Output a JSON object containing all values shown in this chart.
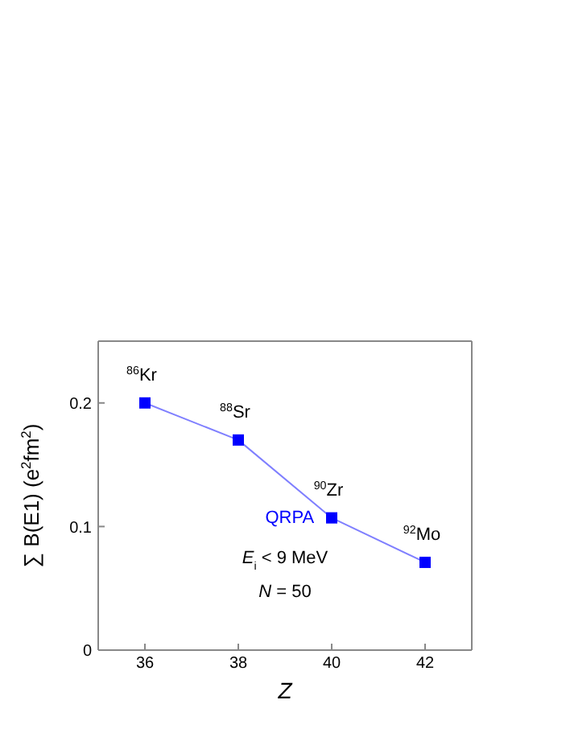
{
  "chart_data": {
    "type": "line",
    "xlabel": "Z",
    "ylabel": "∑ B(E1) (e$^{2}$fm$^{2}$)",
    "x": [
      36,
      38,
      40,
      42
    ],
    "series": [
      {
        "name": "QRPA",
        "color": "#0000ff",
        "values": [
          0.2,
          0.17,
          0.107,
          0.071
        ]
      }
    ],
    "xlim": [
      35,
      43
    ],
    "xticks": [
      36,
      38,
      40,
      42
    ],
    "ylim": [
      0,
      0.25
    ],
    "yticks": [
      0,
      0.1,
      0.2
    ],
    "marker": "square",
    "line_style": "solid",
    "grid": false,
    "legend": false,
    "annotations": [
      {
        "text": "$^{86}$Kr",
        "x": 36,
        "y": 0.2
      },
      {
        "text": "$^{88}$Sr",
        "x": 38,
        "y": 0.17
      },
      {
        "text": "$^{90}$Zr",
        "x": 40,
        "y": 0.107
      },
      {
        "text": "$^{92}$Mo",
        "x": 42,
        "y": 0.071
      },
      "E$_{i}$ < 9 MeV",
      "N = 50"
    ]
  }
}
